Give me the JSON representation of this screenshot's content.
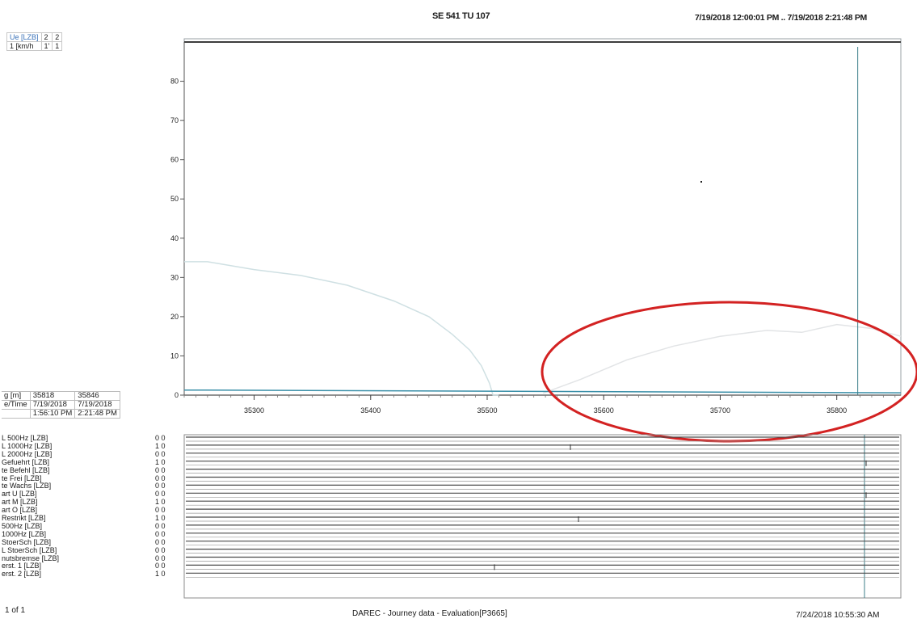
{
  "header": {
    "title": "SE 541 TU 107",
    "time_range": "7/19/2018 12:00:01 PM .. 7/19/2018 2:21:48 PM"
  },
  "legend": {
    "rows": [
      {
        "label": "Ue [LZB]",
        "a": "2",
        "b": "2"
      },
      {
        "label": "1 [km/h",
        "a": "1'",
        "b": "1"
      }
    ]
  },
  "cursor_info": {
    "rows": [
      {
        "label": "g [m]",
        "a": "35818",
        "b": "35846"
      },
      {
        "label": "e/Time",
        "a": "7/19/2018",
        "b": "7/19/2018"
      },
      {
        "label": "",
        "a": "1:56:10 PM",
        "b": "2:21:48 PM"
      }
    ]
  },
  "chart_data": {
    "type": "line",
    "title": "",
    "xlabel": "",
    "ylabel": "",
    "xlim": [
      35240,
      35855
    ],
    "ylim": [
      0,
      90
    ],
    "x_ticks": [
      35300,
      35400,
      35500,
      35600,
      35700,
      35800
    ],
    "x_tick_labels": [
      "35300",
      "35400",
      "35500",
      "35600",
      "35700",
      "35800"
    ],
    "y_ticks": [
      0,
      10,
      20,
      30,
      40,
      50,
      60,
      70,
      80
    ],
    "y_tick_labels": [
      "0",
      "10",
      "20",
      "30",
      "40",
      "50",
      "60",
      "70",
      "80"
    ],
    "grid": false,
    "cursor_x": 35818,
    "series": [
      {
        "color": "#cfe0e3",
        "x": [
          35240,
          35260,
          35300,
          35340,
          35380,
          35420,
          35450,
          35470,
          35485,
          35495,
          35502,
          35505,
          35510
        ],
        "y": [
          34,
          34,
          32,
          30.5,
          28,
          24,
          20,
          15.5,
          11.5,
          7.5,
          3,
          0,
          0
        ]
      },
      {
        "color": "#e2e4e6",
        "x": [
          35548,
          35580,
          35620,
          35660,
          35700,
          35740,
          35770,
          35800,
          35830,
          35855
        ],
        "y": [
          0.5,
          4,
          9,
          12.5,
          15,
          16.5,
          16,
          18,
          17,
          15
        ]
      },
      {
        "color": "#3a8fa8",
        "x": [
          35240,
          35855
        ],
        "y": [
          1.3,
          0.6
        ]
      }
    ]
  },
  "signals": {
    "labels": [
      "L 500Hz [LZB]",
      "L 1000Hz [LZB]",
      "L 2000Hz [LZB]",
      "Gefuehrt [LZB]",
      "te Befehl [LZB]",
      "te Frei [LZB]",
      "te Wachs [LZB]",
      "art U [LZB]",
      "art M [LZB]",
      "art O [LZB]",
      "Restrikt [LZB]",
      "500Hz [LZB]",
      "1000Hz [LZB]",
      "StoerSch [LZB]",
      "L StoerSch [LZB]",
      "nutsbremse [LZB]",
      "erst. 1 [LZB]",
      "erst. 2 [LZB]"
    ],
    "vals": [
      [
        "0",
        "0"
      ],
      [
        "1",
        "0"
      ],
      [
        "0",
        "0"
      ],
      [
        "1",
        "0"
      ],
      [
        "0",
        "0"
      ],
      [
        "0",
        "0"
      ],
      [
        "0",
        "0"
      ],
      [
        "0",
        "0"
      ],
      [
        "1",
        "0"
      ],
      [
        "0",
        "0"
      ],
      [
        "1",
        "0"
      ],
      [
        "0",
        "0"
      ],
      [
        "0",
        "0"
      ],
      [
        "0",
        "0"
      ],
      [
        "0",
        "0"
      ],
      [
        "0",
        "0"
      ],
      [
        "0",
        "0"
      ],
      [
        "1",
        "0"
      ]
    ]
  },
  "footer": {
    "page": "1 of 1",
    "title": "DAREC - Journey data - Evaluation[P3665]",
    "printed": "7/24/2018 10:55:30 AM"
  },
  "colors": {
    "frame": "#9aa0a4",
    "cursor": "#3d7f8a",
    "highlight": "#d32222",
    "legend_text": "#3a72b8"
  }
}
